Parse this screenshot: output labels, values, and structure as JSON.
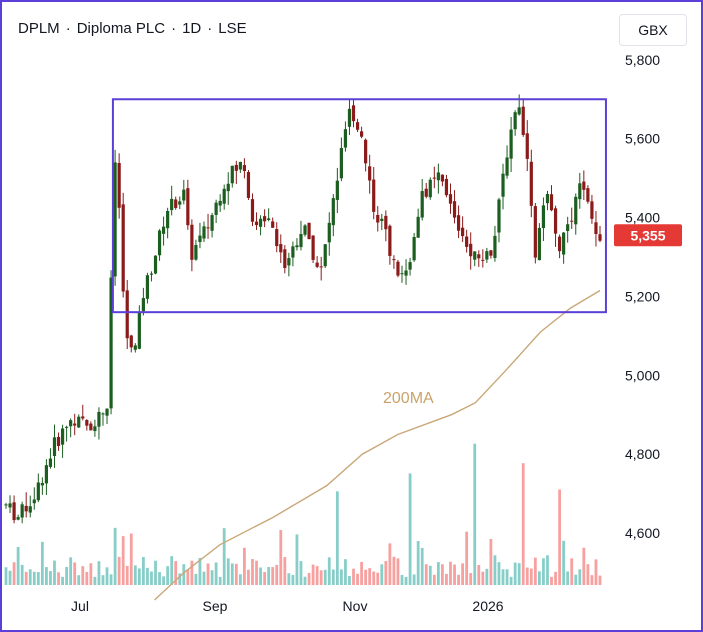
{
  "header": {
    "symbol": "DPLM",
    "name": "Diploma PLC",
    "interval": "1D",
    "exchange": "LSE",
    "separator": "·"
  },
  "currency_button": {
    "label": "GBX"
  },
  "colors": {
    "up": "#26a69a",
    "down": "#ef5350",
    "up_body": "#1b5e20",
    "down_body": "#8b1a1a",
    "ma": "#c9a878",
    "range_box": "#5b3fd6",
    "price_badge": "#e53935"
  },
  "chart_data": {
    "type": "candlestick",
    "title": "DPLM · Diploma PLC · 1D · LSE",
    "currency": "GBX",
    "y_ticks": [
      4600,
      4800,
      5000,
      5200,
      5400,
      5600,
      5800
    ],
    "y_tick_labels": [
      "4,600",
      "4,800",
      "5,000",
      "5,200",
      "5,400",
      "5,600",
      "5,800"
    ],
    "x_tick_labels": [
      "Jul",
      "Sep",
      "Nov",
      "2026"
    ],
    "ylim": [
      4430,
      5830
    ],
    "last_price": 5355,
    "last_price_label": "5,355",
    "ma_label": "200MA",
    "ma_series": [
      [
        0.25,
        4430
      ],
      [
        0.3,
        4500
      ],
      [
        0.36,
        4570
      ],
      [
        0.45,
        4640
      ],
      [
        0.54,
        4720
      ],
      [
        0.6,
        4800
      ],
      [
        0.66,
        4850
      ],
      [
        0.75,
        4900
      ],
      [
        0.79,
        4930
      ],
      [
        0.84,
        5010
      ],
      [
        0.9,
        5110
      ],
      [
        0.95,
        5170
      ],
      [
        1.0,
        5215
      ]
    ],
    "range_box": {
      "low": 5160,
      "high": 5700,
      "start_frac": 0.18,
      "end_frac": 1.01
    },
    "price_path": [
      [
        0.0,
        4670
      ],
      [
        0.02,
        4640
      ],
      [
        0.05,
        4700
      ],
      [
        0.08,
        4820
      ],
      [
        0.11,
        4890
      ],
      [
        0.14,
        4870
      ],
      [
        0.17,
        4920
      ],
      [
        0.185,
        5600
      ],
      [
        0.2,
        5120
      ],
      [
        0.215,
        5040
      ],
      [
        0.23,
        5200
      ],
      [
        0.25,
        5300
      ],
      [
        0.27,
        5420
      ],
      [
        0.3,
        5460
      ],
      [
        0.31,
        5300
      ],
      [
        0.34,
        5380
      ],
      [
        0.37,
        5500
      ],
      [
        0.4,
        5540
      ],
      [
        0.42,
        5360
      ],
      [
        0.44,
        5420
      ],
      [
        0.47,
        5280
      ],
      [
        0.5,
        5380
      ],
      [
        0.53,
        5260
      ],
      [
        0.56,
        5520
      ],
      [
        0.58,
        5680
      ],
      [
        0.6,
        5600
      ],
      [
        0.62,
        5420
      ],
      [
        0.64,
        5360
      ],
      [
        0.66,
        5240
      ],
      [
        0.68,
        5300
      ],
      [
        0.7,
        5460
      ],
      [
        0.73,
        5500
      ],
      [
        0.76,
        5380
      ],
      [
        0.79,
        5300
      ],
      [
        0.82,
        5320
      ],
      [
        0.84,
        5540
      ],
      [
        0.86,
        5700
      ],
      [
        0.875,
        5600
      ],
      [
        0.89,
        5300
      ],
      [
        0.91,
        5460
      ],
      [
        0.93,
        5320
      ],
      [
        0.95,
        5380
      ],
      [
        0.97,
        5500
      ],
      [
        0.99,
        5355
      ]
    ],
    "volume_spikes": [
      0.56,
      0.68,
      0.79,
      0.87,
      0.93
    ]
  }
}
